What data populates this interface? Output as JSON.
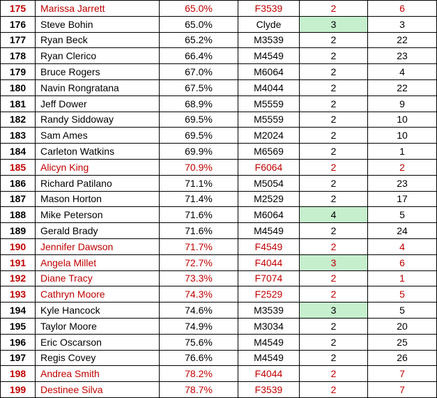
{
  "colors": {
    "red_text": "#C00000",
    "green_fill": "#C6EFCE",
    "border": "#000000",
    "background": "#FFFFFF"
  },
  "table": {
    "rows": [
      {
        "rank": "175",
        "name": "Marissa Jarrett",
        "pct": "65.0%",
        "category": "F3539",
        "val1": "2",
        "val2": "6",
        "red": true,
        "green_cell": null
      },
      {
        "rank": "176",
        "name": "Steve Bohin",
        "pct": "65.0%",
        "category": "Clyde",
        "val1": "3",
        "val2": "3",
        "red": false,
        "green_cell": "val1"
      },
      {
        "rank": "177",
        "name": "Ryan Beck",
        "pct": "65.2%",
        "category": "M3539",
        "val1": "2",
        "val2": "22",
        "red": false,
        "green_cell": null
      },
      {
        "rank": "178",
        "name": "Ryan Clerico",
        "pct": "66.4%",
        "category": "M4549",
        "val1": "2",
        "val2": "23",
        "red": false,
        "green_cell": null
      },
      {
        "rank": "179",
        "name": "Bruce Rogers",
        "pct": "67.0%",
        "category": "M6064",
        "val1": "2",
        "val2": "4",
        "red": false,
        "green_cell": null
      },
      {
        "rank": "180",
        "name": "Navin Rongratana",
        "pct": "67.5%",
        "category": "M4044",
        "val1": "2",
        "val2": "22",
        "red": false,
        "green_cell": null
      },
      {
        "rank": "181",
        "name": "Jeff Dower",
        "pct": "68.9%",
        "category": "M5559",
        "val1": "2",
        "val2": "9",
        "red": false,
        "green_cell": null
      },
      {
        "rank": "182",
        "name": "Randy Siddoway",
        "pct": "69.5%",
        "category": "M5559",
        "val1": "2",
        "val2": "10",
        "red": false,
        "green_cell": null
      },
      {
        "rank": "183",
        "name": "Sam Ames",
        "pct": "69.5%",
        "category": "M2024",
        "val1": "2",
        "val2": "10",
        "red": false,
        "green_cell": null
      },
      {
        "rank": "184",
        "name": "Carleton Watkins",
        "pct": "69.9%",
        "category": "M6569",
        "val1": "2",
        "val2": "1",
        "red": false,
        "green_cell": null
      },
      {
        "rank": "185",
        "name": "Alicyn King",
        "pct": "70.9%",
        "category": "F6064",
        "val1": "2",
        "val2": "2",
        "red": true,
        "green_cell": null
      },
      {
        "rank": "186",
        "name": "Richard Patilano",
        "pct": "71.1%",
        "category": "M5054",
        "val1": "2",
        "val2": "23",
        "red": false,
        "green_cell": null
      },
      {
        "rank": "187",
        "name": "Mason Horton",
        "pct": "71.4%",
        "category": "M2529",
        "val1": "2",
        "val2": "17",
        "red": false,
        "green_cell": null
      },
      {
        "rank": "188",
        "name": "Mike Peterson",
        "pct": "71.6%",
        "category": "M6064",
        "val1": "4",
        "val2": "5",
        "red": false,
        "green_cell": "val1"
      },
      {
        "rank": "189",
        "name": "Gerald Brady",
        "pct": "71.6%",
        "category": "M4549",
        "val1": "2",
        "val2": "24",
        "red": false,
        "green_cell": null
      },
      {
        "rank": "190",
        "name": "Jennifer Dawson",
        "pct": "71.7%",
        "category": "F4549",
        "val1": "2",
        "val2": "4",
        "red": true,
        "green_cell": null
      },
      {
        "rank": "191",
        "name": "Angela Millet",
        "pct": "72.7%",
        "category": "F4044",
        "val1": "3",
        "val2": "6",
        "red": true,
        "green_cell": "val1"
      },
      {
        "rank": "192",
        "name": "Diane Tracy",
        "pct": "73.3%",
        "category": "F7074",
        "val1": "2",
        "val2": "1",
        "red": true,
        "green_cell": null
      },
      {
        "rank": "193",
        "name": "Cathryn Moore",
        "pct": "74.3%",
        "category": "F2529",
        "val1": "2",
        "val2": "5",
        "red": true,
        "green_cell": null
      },
      {
        "rank": "194",
        "name": "Kyle Hancock",
        "pct": "74.6%",
        "category": "M3539",
        "val1": "3",
        "val2": "5",
        "red": false,
        "green_cell": "val1"
      },
      {
        "rank": "195",
        "name": "Taylor Moore",
        "pct": "74.9%",
        "category": "M3034",
        "val1": "2",
        "val2": "20",
        "red": false,
        "green_cell": null
      },
      {
        "rank": "196",
        "name": "Eric Oscarson",
        "pct": "75.6%",
        "category": "M4549",
        "val1": "2",
        "val2": "25",
        "red": false,
        "green_cell": null
      },
      {
        "rank": "197",
        "name": "Regis Covey",
        "pct": "76.6%",
        "category": "M4549",
        "val1": "2",
        "val2": "26",
        "red": false,
        "green_cell": null
      },
      {
        "rank": "198",
        "name": "Andrea Smith",
        "pct": "78.2%",
        "category": "F4044",
        "val1": "2",
        "val2": "7",
        "red": true,
        "green_cell": null
      },
      {
        "rank": "199",
        "name": "Destinee Silva",
        "pct": "78.7%",
        "category": "F3539",
        "val1": "2",
        "val2": "7",
        "red": true,
        "green_cell": null
      }
    ]
  }
}
